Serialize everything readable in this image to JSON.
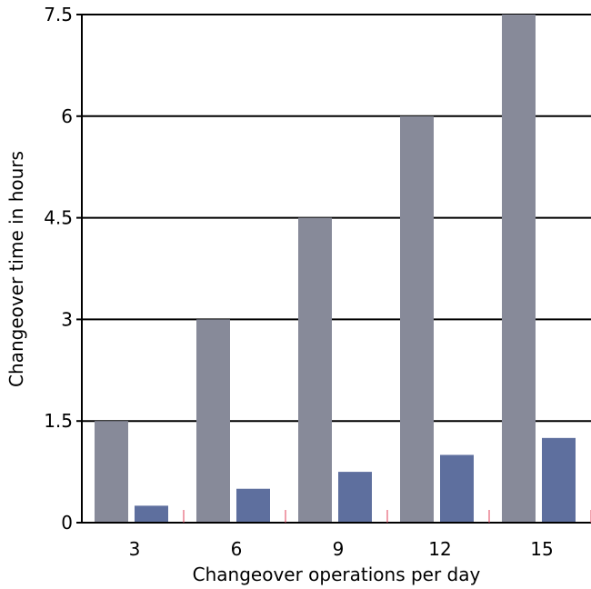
{
  "chart_data": {
    "type": "bar",
    "title": "",
    "xlabel": "Changeover operations per day",
    "ylabel": "Changeover time in hours",
    "categories": [
      "3",
      "6",
      "9",
      "12",
      "15"
    ],
    "series": [
      {
        "values": [
          1.5,
          3.0,
          4.5,
          6.0,
          7.5
        ],
        "color": "#878a99"
      },
      {
        "values": [
          0.25,
          0.5,
          0.75,
          1.0,
          1.25
        ],
        "color": "#5e6f9e"
      }
    ],
    "ylim": [
      0,
      7.5
    ],
    "yticks": [
      "0",
      "1.5",
      "3",
      "4.5",
      "6",
      "7.5"
    ],
    "grid": true,
    "legend": "none",
    "axis_color": "#000000",
    "minor_tick_color": "#e0405a"
  }
}
